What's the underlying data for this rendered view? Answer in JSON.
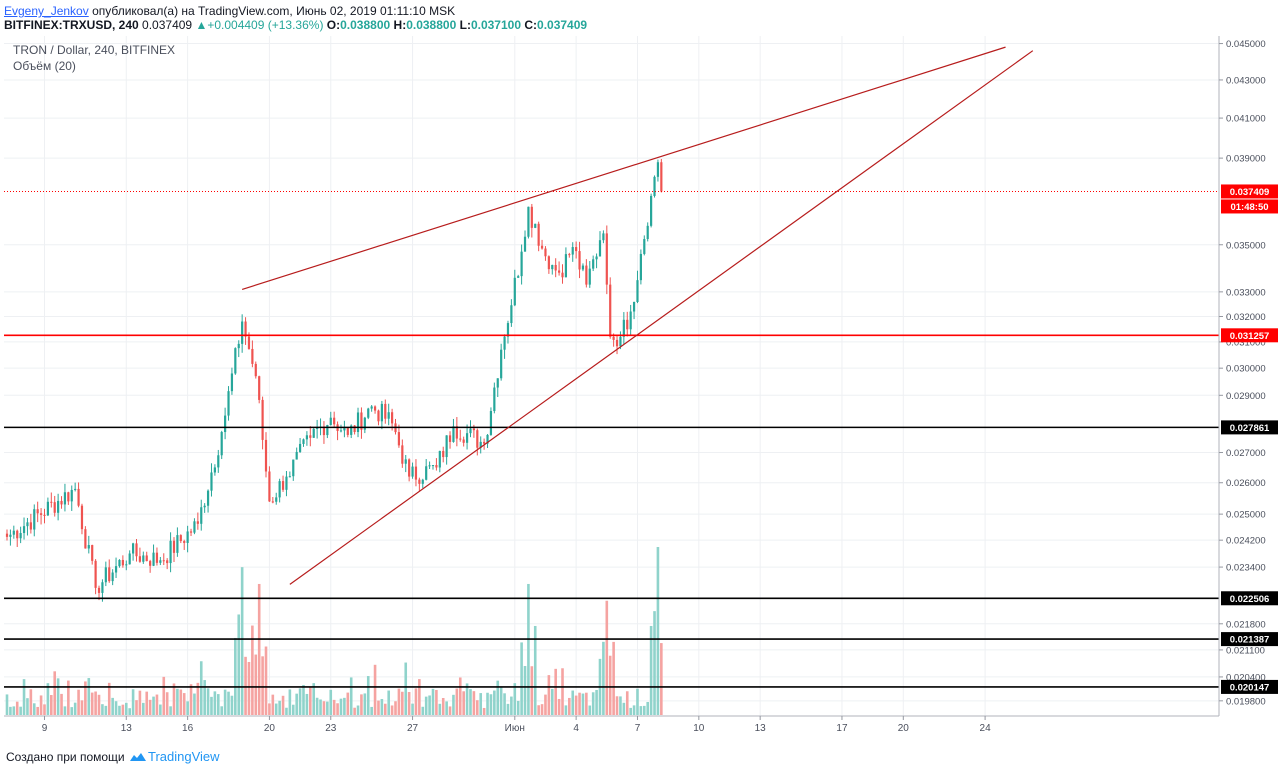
{
  "header": {
    "author": "Evgeny_Jenkov",
    "published": "опубликовал(а) на TradingView.com, Июнь 02, 2019 01:11:10 MSK",
    "symbol": "BITFINEX:TRXUSD, 240",
    "last": "0.037409",
    "change_arrow": "▲",
    "change": "+0.004409 (+13.36%)",
    "o_label": "O:",
    "o_value": "0.038800",
    "h_label": "H:",
    "h_value": "0.038800",
    "l_label": "L:",
    "l_value": "0.037100",
    "c_label": "C:",
    "c_value": "0.037409"
  },
  "legend": {
    "title": "TRON / Dollar, 240, BITFINEX",
    "volume": "Объём (20)"
  },
  "footer": {
    "prefix": "Создано при помощи",
    "brand": "TradingView"
  },
  "colors": {
    "up": "#26a69a",
    "down": "#ef5350",
    "vol_up": "#8fd3cb",
    "vol_down": "#f5a3a1",
    "trendline": "#b71c1c",
    "red_level": "#ff0000",
    "black_level": "#000000"
  },
  "chart_data": {
    "type": "candlestick",
    "title": "TRON / Dollar, 240, BITFINEX",
    "y_scale": "log",
    "ylim": [
      0.01955,
      0.0452
    ],
    "y_ticks": [
      "0.045000",
      "0.043000",
      "0.041000",
      "0.039000",
      "0.035000",
      "0.033000",
      "0.032000",
      "0.031000",
      "0.030000",
      "0.029000",
      "0.027000",
      "0.026000",
      "0.025000",
      "0.024200",
      "0.023400",
      "0.021800",
      "0.021100",
      "0.020400",
      "0.019800"
    ],
    "x_ticks": [
      "9",
      "13",
      "16",
      "20",
      "23",
      "27",
      "Июн",
      "4",
      "7",
      "10",
      "13",
      "17",
      "20",
      "24"
    ],
    "price_labels": [
      {
        "value": "0.037409",
        "kind": "last"
      },
      {
        "value": "01:48:50",
        "kind": "countdown"
      },
      {
        "value": "0.031257",
        "kind": "red_level"
      },
      {
        "value": "0.027861",
        "kind": "black_level"
      },
      {
        "value": "0.022506",
        "kind": "black_level"
      },
      {
        "value": "0.021387",
        "kind": "black_level"
      },
      {
        "value": "0.020147",
        "kind": "black_level"
      }
    ],
    "horizontal_levels": [
      {
        "value": 0.037409,
        "style": "dotted",
        "color": "#ff0000"
      },
      {
        "value": 0.031257,
        "style": "solid",
        "color": "#ff0000"
      },
      {
        "value": 0.027861,
        "style": "solid",
        "color": "#000000"
      },
      {
        "value": 0.022506,
        "style": "solid",
        "color": "#000000"
      },
      {
        "value": 0.021387,
        "style": "solid",
        "color": "#000000"
      },
      {
        "value": 0.020147,
        "style": "solid",
        "color": "#000000"
      }
    ],
    "trendlines": [
      {
        "from": {
          "bar": 69,
          "price": 0.0331
        },
        "to": {
          "bar": 293,
          "price": 0.0448
        }
      },
      {
        "from": {
          "bar": 83,
          "price": 0.0229
        },
        "to": {
          "bar": 301,
          "price": 0.0446
        }
      }
    ],
    "key_points": [
      {
        "bar": 0,
        "price": 0.0243
      },
      {
        "bar": 20,
        "price": 0.0258
      },
      {
        "bar": 26,
        "price": 0.0228
      },
      {
        "bar": 36,
        "price": 0.0238
      },
      {
        "bar": 45,
        "price": 0.0236
      },
      {
        "bar": 56,
        "price": 0.0247
      },
      {
        "bar": 63,
        "price": 0.0277
      },
      {
        "bar": 69,
        "price": 0.0318
      },
      {
        "bar": 73,
        "price": 0.0297
      },
      {
        "bar": 77,
        "price": 0.0254
      },
      {
        "bar": 82,
        "price": 0.0262
      },
      {
        "bar": 89,
        "price": 0.0275
      },
      {
        "bar": 95,
        "price": 0.0282
      },
      {
        "bar": 100,
        "price": 0.0276
      },
      {
        "bar": 107,
        "price": 0.0286
      },
      {
        "bar": 113,
        "price": 0.028
      },
      {
        "bar": 118,
        "price": 0.0262
      },
      {
        "bar": 126,
        "price": 0.0265
      },
      {
        "bar": 131,
        "price": 0.0279
      },
      {
        "bar": 140,
        "price": 0.0273
      },
      {
        "bar": 145,
        "price": 0.0307
      },
      {
        "bar": 151,
        "price": 0.0347
      },
      {
        "bar": 153,
        "price": 0.0367
      },
      {
        "bar": 158,
        "price": 0.0345
      },
      {
        "bar": 162,
        "price": 0.0338
      },
      {
        "bar": 166,
        "price": 0.0349
      },
      {
        "bar": 170,
        "price": 0.0333
      },
      {
        "bar": 174,
        "price": 0.0352
      },
      {
        "bar": 175,
        "price": 0.0355
      },
      {
        "bar": 176,
        "price": 0.0333
      },
      {
        "bar": 177,
        "price": 0.0312
      },
      {
        "bar": 180,
        "price": 0.0312
      },
      {
        "bar": 183,
        "price": 0.0322
      },
      {
        "bar": 186,
        "price": 0.0346
      },
      {
        "bar": 189,
        "price": 0.0372
      },
      {
        "bar": 191,
        "price": 0.0388
      },
      {
        "bar": 192,
        "price": 0.037409
      }
    ],
    "volume_peaks": [
      {
        "bar": 24,
        "relative": 0.22
      },
      {
        "bar": 57,
        "relative": 0.32
      },
      {
        "bar": 69,
        "relative": 0.88
      },
      {
        "bar": 74,
        "relative": 0.78
      },
      {
        "bar": 153,
        "relative": 0.78
      },
      {
        "bar": 176,
        "relative": 0.68
      },
      {
        "bar": 191,
        "relative": 1.0
      }
    ],
    "bar_count": 193,
    "last_price": 0.037409
  }
}
